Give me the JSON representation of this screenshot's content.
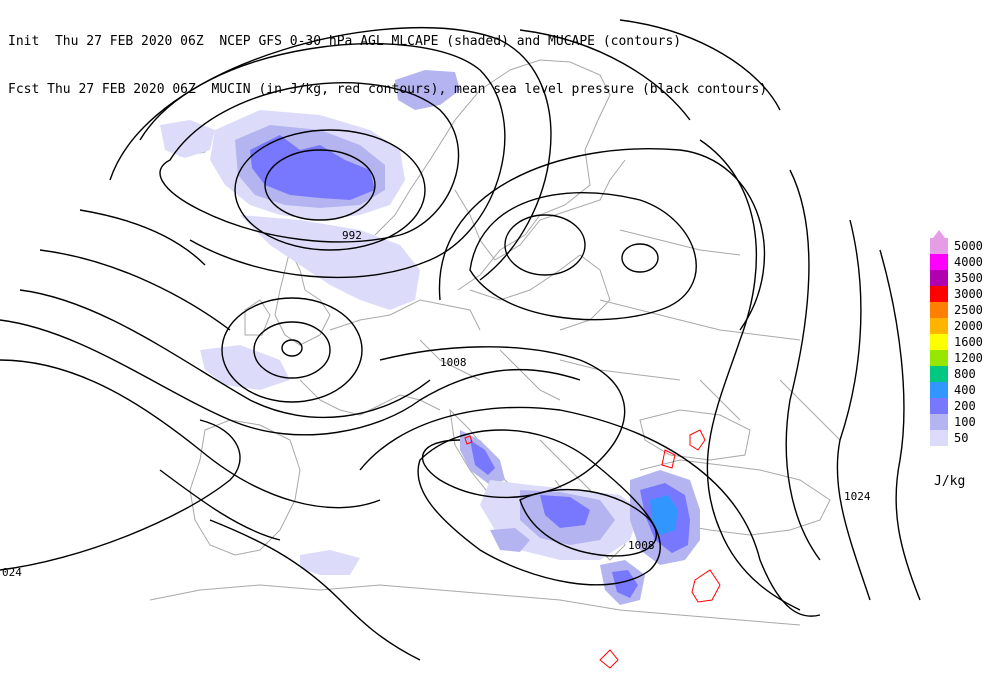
{
  "header": {
    "line1": "Init  Thu 27 FEB 2020 06Z  NCEP GFS 0-30 hPa AGL MLCAPE (shaded) and MUCAPE (contours)",
    "line2": "Fcst Thu 27 FEB 2020 06Z  MUCIN (in J/kg, red contours), mean sea level pressure (black contours)"
  },
  "isobar_labels": [
    "992",
    "1008",
    "1024",
    "1008",
    "024"
  ],
  "legend": {
    "units": "J/kg",
    "entries": [
      {
        "label": "5000",
        "color": "#e59ee6"
      },
      {
        "label": "4000",
        "color": "#ff00ff"
      },
      {
        "label": "3500",
        "color": "#b000b0"
      },
      {
        "label": "3000",
        "color": "#ff0000"
      },
      {
        "label": "2500",
        "color": "#ff7f00"
      },
      {
        "label": "2000",
        "color": "#ffb400"
      },
      {
        "label": "1600",
        "color": "#ffff00"
      },
      {
        "label": "1200",
        "color": "#96e600"
      },
      {
        "label": "800",
        "color": "#00c882"
      },
      {
        "label": "400",
        "color": "#3296ff"
      },
      {
        "label": "200",
        "color": "#7878ff"
      },
      {
        "label": "100",
        "color": "#b4b4f0"
      },
      {
        "label": "50",
        "color": "#dcdcfa"
      }
    ]
  },
  "colors": {
    "coastline": "#a8a8a8",
    "isobar": "#000000",
    "mucin": "#ff0000",
    "cape_light": "#dcdcfa",
    "cape_mid": "#b4b4f0",
    "cape_dark": "#7878ff",
    "cape_strong": "#3296ff"
  }
}
